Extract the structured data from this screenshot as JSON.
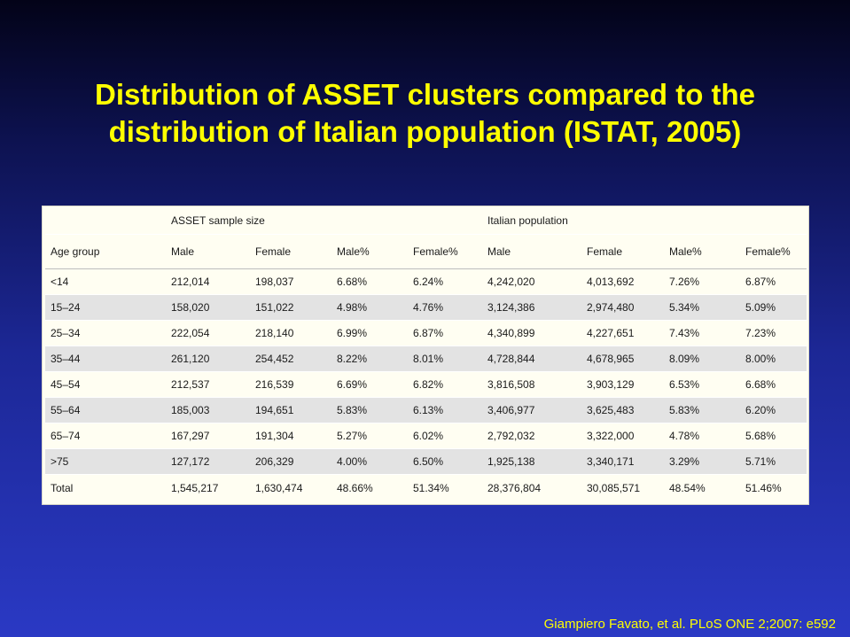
{
  "slide": {
    "title_line1": "Distribution of ASSET clusters compared to the",
    "title_line2": "distribution of Italian population (ISTAT, 2005)",
    "citation": "Giampiero Favato, et al. PLoS ONE 2;2007: e592"
  },
  "table": {
    "group_headers": {
      "asset": "ASSET sample size",
      "italian": "Italian population"
    },
    "columns": [
      "Age group",
      "Male",
      "Female",
      "Male%",
      "Female%",
      "Male",
      "Female",
      "Male%",
      "Female%"
    ],
    "rows": [
      [
        "<14",
        "212,014",
        "198,037",
        "6.68%",
        "6.24%",
        "4,242,020",
        "4,013,692",
        "7.26%",
        "6.87%"
      ],
      [
        "15–24",
        "158,020",
        "151,022",
        "4.98%",
        "4.76%",
        "3,124,386",
        "2,974,480",
        "5.34%",
        "5.09%"
      ],
      [
        "25–34",
        "222,054",
        "218,140",
        "6.99%",
        "6.87%",
        "4,340,899",
        "4,227,651",
        "7.43%",
        "7.23%"
      ],
      [
        "35–44",
        "261,120",
        "254,452",
        "8.22%",
        "8.01%",
        "4,728,844",
        "4,678,965",
        "8.09%",
        "8.00%"
      ],
      [
        "45–54",
        "212,537",
        "216,539",
        "6.69%",
        "6.82%",
        "3,816,508",
        "3,903,129",
        "6.53%",
        "6.68%"
      ],
      [
        "55–64",
        "185,003",
        "194,651",
        "5.83%",
        "6.13%",
        "3,406,977",
        "3,625,483",
        "5.83%",
        "6.20%"
      ],
      [
        "65–74",
        "167,297",
        "191,304",
        "5.27%",
        "6.02%",
        "2,792,032",
        "3,322,000",
        "4.78%",
        "5.68%"
      ],
      [
        ">75",
        "127,172",
        "206,329",
        "4.00%",
        "6.50%",
        "1,925,138",
        "3,340,171",
        "3.29%",
        "5.71%"
      ]
    ],
    "total": [
      "Total",
      "1,545,217",
      "1,630,474",
      "48.66%",
      "51.34%",
      "28,376,804",
      "30,085,571",
      "48.54%",
      "51.46%"
    ]
  }
}
